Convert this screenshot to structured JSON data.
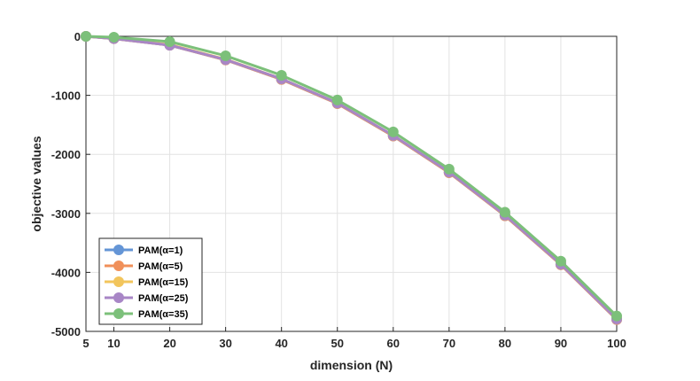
{
  "chart_data": {
    "type": "line",
    "xlabel": "dimension (N)",
    "ylabel": "objective values",
    "x": [
      5,
      10,
      20,
      30,
      40,
      50,
      60,
      70,
      80,
      90,
      100
    ],
    "xlim": [
      5,
      100
    ],
    "ylim": [
      -5000,
      0
    ],
    "xticks": [
      5,
      10,
      20,
      30,
      40,
      50,
      60,
      70,
      80,
      90,
      100
    ],
    "yticks": [
      0,
      -1000,
      -2000,
      -3000,
      -4000,
      -5000
    ],
    "grid": true,
    "legend_position": "bottom-left",
    "series": [
      {
        "name": "PAM(α=1)",
        "color": "#6495d6",
        "values": [
          0,
          -40,
          -150,
          -400,
          -730,
          -1140,
          -1690,
          -2310,
          -3040,
          -3870,
          -4800
        ]
      },
      {
        "name": "PAM(α=5)",
        "color": "#f0905a",
        "values": [
          0,
          -40,
          -150,
          -400,
          -730,
          -1140,
          -1690,
          -2310,
          -3040,
          -3870,
          -4800
        ]
      },
      {
        "name": "PAM(α=15)",
        "color": "#f2c55c",
        "values": [
          0,
          -35,
          -140,
          -390,
          -720,
          -1130,
          -1680,
          -2300,
          -3030,
          -3860,
          -4790
        ]
      },
      {
        "name": "PAM(α=25)",
        "color": "#a886c6",
        "values": [
          0,
          -38,
          -150,
          -395,
          -720,
          -1130,
          -1680,
          -2300,
          -3030,
          -3860,
          -4790
        ]
      },
      {
        "name": "PAM(α=35)",
        "color": "#7cc07a",
        "values": [
          0,
          -15,
          -90,
          -330,
          -660,
          -1080,
          -1620,
          -2250,
          -2980,
          -3810,
          -4740
        ]
      }
    ]
  }
}
